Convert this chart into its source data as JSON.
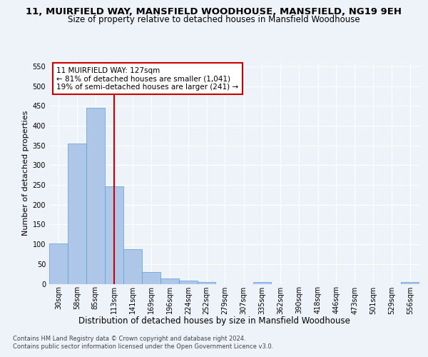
{
  "title": "11, MUIRFIELD WAY, MANSFIELD WOODHOUSE, MANSFIELD, NG19 9EH",
  "subtitle": "Size of property relative to detached houses in Mansfield Woodhouse",
  "xlabel": "Distribution of detached houses by size in Mansfield Woodhouse",
  "ylabel": "Number of detached properties",
  "footer_line1": "Contains HM Land Registry data © Crown copyright and database right 2024.",
  "footer_line2": "Contains public sector information licensed under the Open Government Licence v3.0.",
  "annotation_line1": "11 MUIRFIELD WAY: 127sqm",
  "annotation_line2": "← 81% of detached houses are smaller (1,041)",
  "annotation_line3": "19% of semi-detached houses are larger (241) →",
  "bar_edges": [
    30,
    58,
    85,
    113,
    141,
    169,
    196,
    224,
    252,
    279,
    307,
    335,
    362,
    390,
    418,
    446,
    473,
    501,
    529,
    556,
    584
  ],
  "bar_heights": [
    102,
    355,
    446,
    246,
    87,
    30,
    13,
    9,
    5,
    0,
    0,
    5,
    0,
    0,
    0,
    0,
    0,
    0,
    0,
    5
  ],
  "bar_color": "#aec6e8",
  "bar_edgecolor": "#5a9fd4",
  "vline_color": "#cc0000",
  "vline_x": 127,
  "annotation_box_edgecolor": "#cc0000",
  "ylim": [
    0,
    560
  ],
  "yticks": [
    0,
    50,
    100,
    150,
    200,
    250,
    300,
    350,
    400,
    450,
    500,
    550
  ],
  "bg_color": "#eef2f9",
  "grid_color": "#ffffff",
  "title_fontsize": 9.5,
  "subtitle_fontsize": 8.5,
  "ylabel_fontsize": 8,
  "xlabel_fontsize": 8.5,
  "tick_fontsize": 7,
  "annotation_fontsize": 7.5,
  "footer_fontsize": 6.0
}
